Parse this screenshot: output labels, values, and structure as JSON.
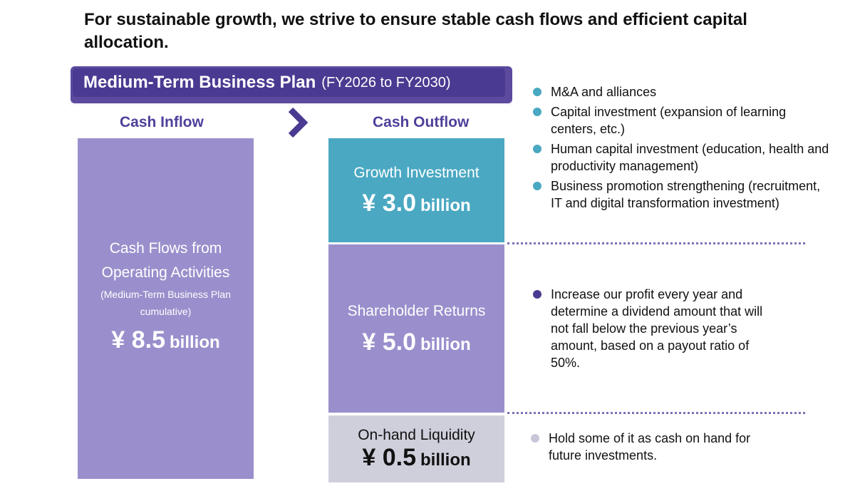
{
  "headline": "For sustainable growth, we strive to ensure stable cash flows and efficient capital allocation.",
  "plan": {
    "title": "Medium-Term Business Plan",
    "range": "(FY2026 to FY2030)"
  },
  "labels": {
    "inflow": "Cash Inflow",
    "outflow": "Cash Outflow"
  },
  "inflow": {
    "line1": "Cash Flows from",
    "line2": "Operating Activities",
    "note1": "(Medium-Term Business Plan",
    "note2": "cumulative)",
    "amount": "¥ 8.5",
    "unit": "billion"
  },
  "outflows": {
    "growth": {
      "title": "Growth Investment",
      "amount": "¥ 3.0",
      "unit": "billion"
    },
    "shareholder": {
      "title": "Shareholder Returns",
      "amount": "¥ 5.0",
      "unit": "billion"
    },
    "liquidity": {
      "title": "On-hand Liquidity",
      "amount": "¥ 0.5",
      "unit": "billion"
    }
  },
  "growth_bullets": [
    "M&A and alliances",
    "Capital investment (expansion of learning centers, etc.)",
    "Human capital investment (education, health and productivity management)",
    "Business promotion strengthening (recruitment, IT and digital transformation investment)"
  ],
  "shareholder_bullets": [
    "Increase our profit every year and determine a dividend amount that will not fall below the previous year’s amount, based on a payout ratio of 50%."
  ],
  "liquidity_bullets": [
    "Hold some of it as cash on hand for future investments."
  ],
  "colors": {
    "purple_dark": "#4b3a91",
    "purple_light": "#9a8fcc",
    "teal": "#4aa8c2",
    "grey": "#cfcfdc"
  }
}
